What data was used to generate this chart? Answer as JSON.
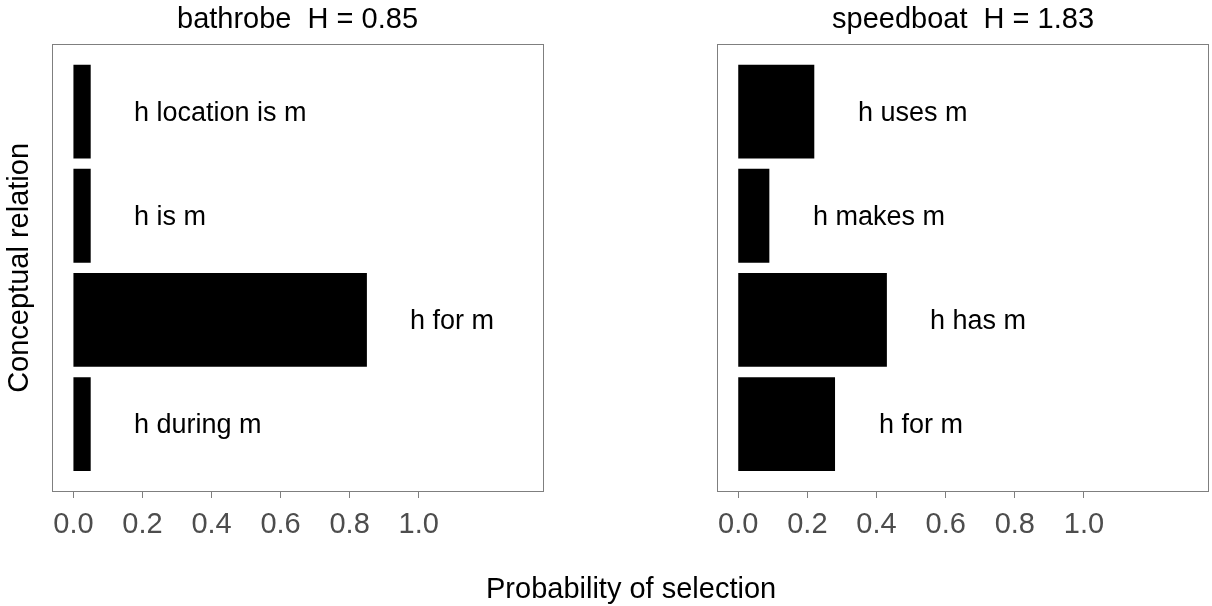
{
  "chart_data": [
    {
      "type": "bar",
      "orientation": "horizontal",
      "title": "bathrobe  H = 0.85",
      "ylabel": "Conceptual relation",
      "xlabel": "Probability of selection",
      "categories": [
        "h location is m",
        "h is m",
        "h for m",
        "h during m"
      ],
      "values": [
        0.05,
        0.05,
        0.85,
        0.05
      ],
      "color": "#000000",
      "xlim": [
        -0.06,
        1.36
      ],
      "xticks": [
        {
          "value": 0,
          "label": "0.0"
        },
        {
          "value": 0.2,
          "label": "0.2"
        },
        {
          "value": 0.4,
          "label": "0.4"
        },
        {
          "value": 0.6,
          "label": "0.6"
        },
        {
          "value": 0.8,
          "label": "0.8"
        },
        {
          "value": 1,
          "label": "1.0"
        }
      ],
      "tick_labels": "x"
    },
    {
      "type": "bar",
      "orientation": "horizontal",
      "title": "speedboat  H = 1.83",
      "categories": [
        "h uses m",
        "h makes m",
        "h has m",
        "h for m"
      ],
      "values": [
        0.22,
        0.09,
        0.43,
        0.28
      ],
      "color": "#000000",
      "xlim": [
        -0.06,
        1.36
      ],
      "xticks": [
        {
          "value": 0,
          "label": "0.0"
        },
        {
          "value": 0.2,
          "label": "0.2"
        },
        {
          "value": 0.4,
          "label": "0.4"
        },
        {
          "value": 0.6,
          "label": "0.6"
        },
        {
          "value": 0.8,
          "label": "0.8"
        },
        {
          "value": 1,
          "label": "1.0"
        }
      ],
      "tick_labels": "x"
    }
  ]
}
